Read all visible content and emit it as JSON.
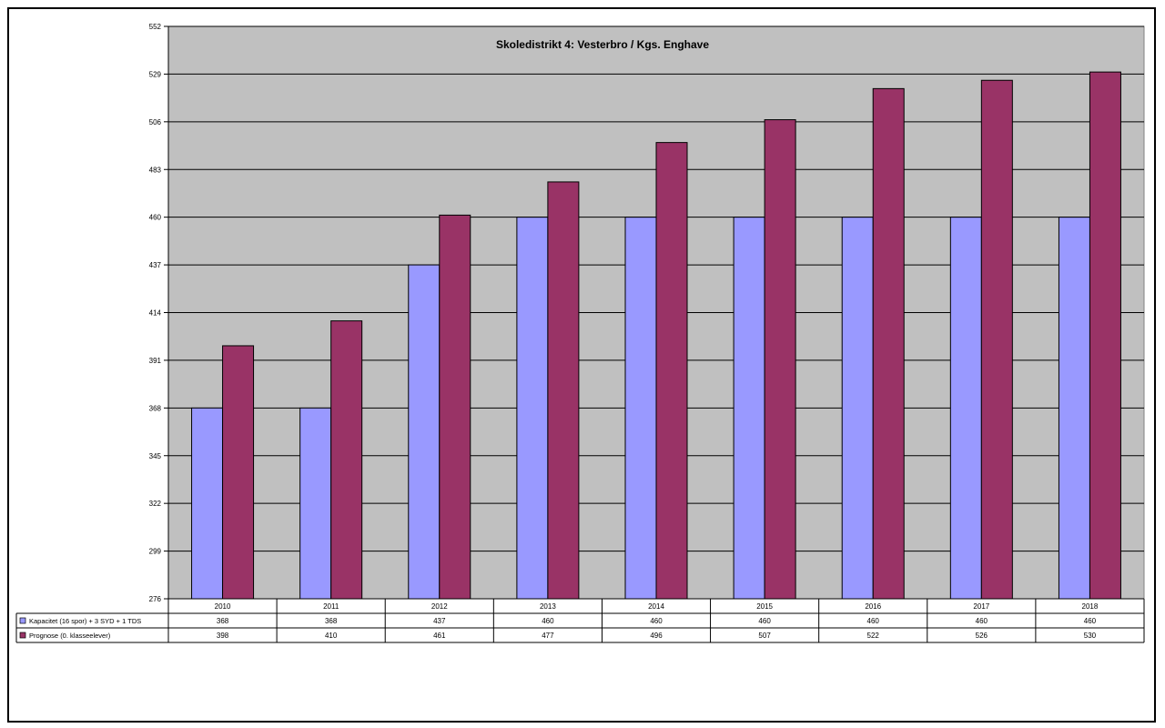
{
  "chart_data": {
    "type": "bar",
    "title": "Skoledistrikt 4: Vesterbro / Kgs. Enghave",
    "xlabel": "",
    "ylabel": "",
    "ylim": [
      276,
      552
    ],
    "yticks": [
      276,
      299,
      322,
      345,
      368,
      391,
      414,
      437,
      460,
      483,
      506,
      529,
      552
    ],
    "grid": true,
    "legend_placement": "data-table",
    "categories": [
      "2010",
      "2011",
      "2012",
      "2013",
      "2014",
      "2015",
      "2016",
      "2017",
      "2018"
    ],
    "series": [
      {
        "name": "Kapacitet (16 spor) + 3 SYD + 1 TDS",
        "color": "#9999ff",
        "values": [
          368,
          368,
          437,
          460,
          460,
          460,
          460,
          460,
          460
        ]
      },
      {
        "name": "Prognose (0. klasseelever)",
        "color": "#993366",
        "values": [
          398,
          410,
          461,
          477,
          496,
          507,
          522,
          526,
          530
        ]
      }
    ],
    "plot_background": "#c0c0c0"
  }
}
